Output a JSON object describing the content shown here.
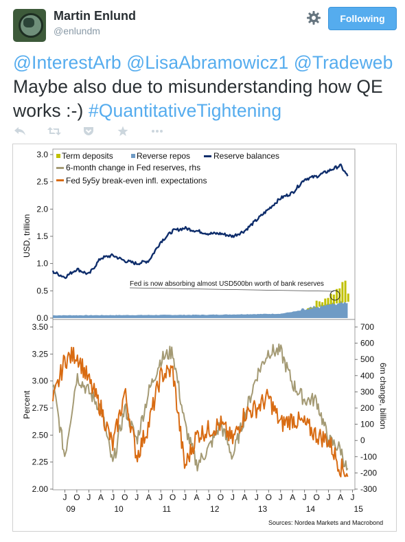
{
  "profile": {
    "name": "Martin Enlund",
    "handle": "@enlundm",
    "follow_label": "Following"
  },
  "tweet": {
    "mentions": [
      "@InterestArb",
      "@LisaAbramowicz1",
      "@Tradeweb"
    ],
    "text": "Maybe also due to misunderstanding how QE works :-)",
    "hashtag": "#QuantitativeTightening"
  },
  "actions": [
    "reply-icon",
    "retweet-icon",
    "favorite-pocket-icon",
    "star-icon",
    "more-icon"
  ],
  "colors": {
    "link": "#55acee",
    "button": "#55acee",
    "term_deposits": "#c0c000",
    "reverse_repos": "#6f9bc5",
    "reserve_balances": "#0e2d6b",
    "fed_change": "#a49a74",
    "breakeven": "#d86b12"
  },
  "chart_data": [
    {
      "type": "area",
      "legend": [
        "Term deposits",
        "Reverse repos",
        "Reserve balances"
      ],
      "ylabel": "USD, trillion",
      "ylim": [
        0,
        3.0
      ],
      "yticks": [
        "3.0",
        "2.5",
        "2.0",
        "1.5",
        "1.0",
        "0.5",
        "0.0"
      ],
      "annotation": "Fed is now absorbing almost USD500bn worth of bank reserves",
      "series": [
        {
          "name": "Reserve balances",
          "x": [
            2008.75,
            2009.0,
            2009.25,
            2009.5,
            2009.75,
            2010.0,
            2010.25,
            2010.5,
            2010.75,
            2011.0,
            2011.25,
            2011.5,
            2011.75,
            2012.0,
            2012.25,
            2012.5,
            2012.75,
            2013.0,
            2013.25,
            2013.5,
            2013.75,
            2014.0,
            2014.25,
            2014.5,
            2014.75,
            2014.9
          ],
          "values": [
            0.85,
            0.75,
            0.9,
            0.8,
            1.1,
            1.15,
            1.05,
            1.0,
            1.05,
            1.4,
            1.6,
            1.65,
            1.6,
            1.55,
            1.55,
            1.5,
            1.6,
            1.8,
            2.0,
            2.2,
            2.3,
            2.55,
            2.6,
            2.7,
            2.8,
            2.6
          ]
        },
        {
          "name": "Reverse repos",
          "x": [
            2008.75,
            2012.0,
            2013.5,
            2014.0,
            2014.5,
            2014.9
          ],
          "values": [
            0.05,
            0.06,
            0.08,
            0.15,
            0.25,
            0.3
          ]
        },
        {
          "name": "Term deposits",
          "x": [
            2014.0,
            2014.3,
            2014.6,
            2014.85,
            2014.9
          ],
          "values": [
            0.0,
            0.1,
            0.2,
            0.4,
            0.1
          ]
        }
      ]
    },
    {
      "type": "line",
      "legend": [
        "6-month change in Fed reserves, rhs",
        "Fed 5y5y break-even infl. expectations"
      ],
      "ylabel": "Percent",
      "y2label": "6m change, billion",
      "ylim": [
        2.0,
        3.5
      ],
      "y2lim": [
        -300,
        700
      ],
      "yticks": [
        "3.50",
        "3.25",
        "3.00",
        "2.75",
        "2.50",
        "2.25",
        "2.00"
      ],
      "y2ticks": [
        "700",
        "600",
        "500",
        "400",
        "300",
        "200",
        "100",
        "0",
        "-100",
        "-200",
        "-300"
      ],
      "xticks": [
        "J",
        "O",
        "J",
        "A",
        "J",
        "O",
        "J",
        "A",
        "J",
        "O",
        "J",
        "A",
        "J",
        "O",
        "J",
        "A",
        "J",
        "O",
        "J",
        "A",
        "J",
        "O",
        "J",
        "A",
        "J",
        "O",
        "J"
      ],
      "xyears": [
        "09",
        "10",
        "11",
        "12",
        "13",
        "14",
        "15"
      ],
      "series": [
        {
          "name": "Fed 5y5y break-even infl. expectations",
          "x": [
            2008.75,
            2009.0,
            2009.25,
            2009.5,
            2009.75,
            2010.0,
            2010.25,
            2010.5,
            2010.75,
            2011.0,
            2011.25,
            2011.5,
            2011.75,
            2012.0,
            2012.25,
            2012.5,
            2012.75,
            2013.0,
            2013.25,
            2013.5,
            2013.75,
            2014.0,
            2014.25,
            2014.5,
            2014.75,
            2014.9
          ],
          "values": [
            2.8,
            3.2,
            3.25,
            3.0,
            2.75,
            2.4,
            2.9,
            2.3,
            2.6,
            3.05,
            3.1,
            2.2,
            2.5,
            2.55,
            2.6,
            2.45,
            2.7,
            2.75,
            2.85,
            2.6,
            2.65,
            2.6,
            2.5,
            2.45,
            2.2,
            2.15
          ]
        },
        {
          "name": "6-month change in Fed reserves, rhs",
          "x": [
            2008.75,
            2009.0,
            2009.25,
            2009.5,
            2009.75,
            2010.0,
            2010.25,
            2010.5,
            2010.75,
            2011.0,
            2011.25,
            2011.5,
            2011.75,
            2012.0,
            2012.25,
            2012.5,
            2012.75,
            2013.0,
            2013.25,
            2013.5,
            2013.75,
            2014.0,
            2014.25,
            2014.5,
            2014.75,
            2014.9
          ],
          "values": [
            350,
            -100,
            400,
            300,
            200,
            -150,
            200,
            0,
            300,
            500,
            550,
            100,
            -150,
            -50,
            100,
            -100,
            150,
            400,
            550,
            550,
            350,
            250,
            250,
            0,
            -50,
            -200
          ]
        }
      ]
    }
  ],
  "source": "Sources: Nordea Markets and Macrobond"
}
